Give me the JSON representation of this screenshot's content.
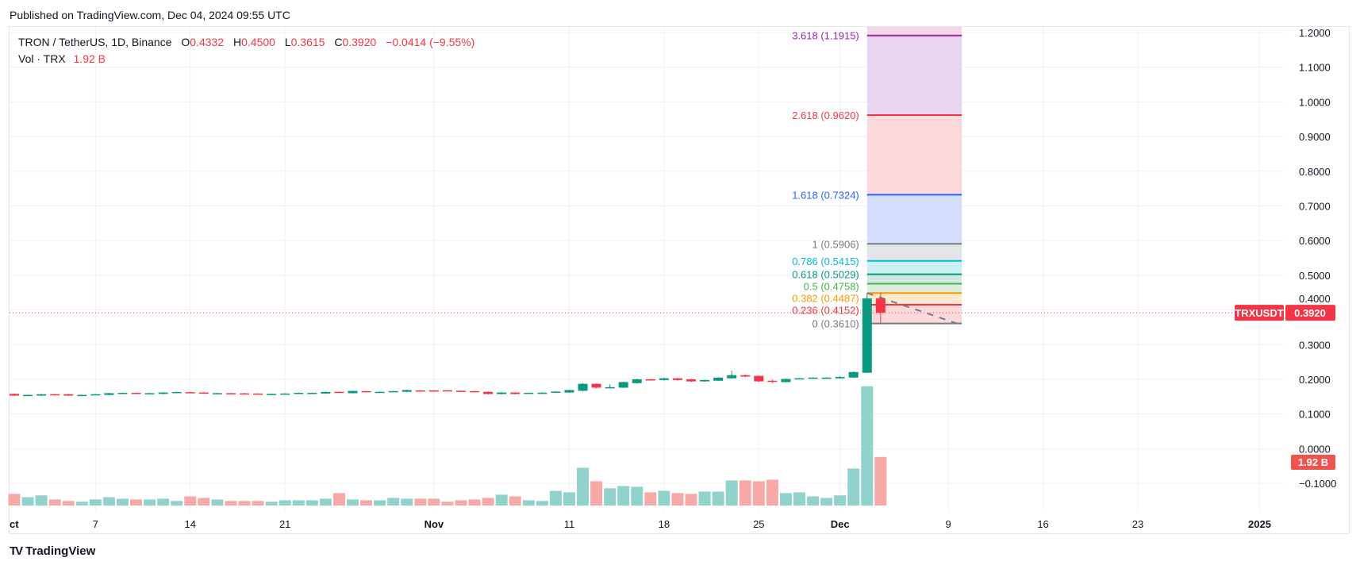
{
  "published": "Published on TradingView.com, Dec 04, 2024 09:55 UTC",
  "legend": {
    "title": "TRON / TetherUS, 1D, Binance",
    "o_label": "O",
    "o": "0.4332",
    "h_label": "H",
    "h": "0.4500",
    "l_label": "L",
    "l": "0.3615",
    "c_label": "C",
    "c": "0.3920",
    "change": "−0.0414 (−9.55%)",
    "vol_label": "Vol · TRX",
    "vol": "1.92 B"
  },
  "footer": {
    "logo": "TV",
    "brand": "TradingView"
  },
  "colors": {
    "up": "#089981",
    "down": "#f23645",
    "vol_up": "#92d2cc",
    "vol_down": "#f7a9a7",
    "grid": "#f0f1f4"
  },
  "chart_data": {
    "type": "candlestick",
    "symbol_badge": "TRXUSDT",
    "last_price": "0.3920",
    "volume_badge": "1.92 B",
    "start_date": "2024-10-01",
    "interval": "1D",
    "y_ticks": [
      "1.2000",
      "1.1000",
      "1.0000",
      "0.9000",
      "0.8000",
      "0.7000",
      "0.6000",
      "0.5000",
      "0.4000",
      "0.3000",
      "0.2000",
      "0.1000",
      "0.0000",
      "−0.1000"
    ],
    "y_tick_values": [
      1.2,
      1.1,
      1.0,
      0.9,
      0.8,
      0.7,
      0.6,
      0.5,
      0.4,
      0.3,
      0.2,
      0.1,
      0.0,
      -0.1
    ],
    "x_ticks": [
      {
        "label": "ct",
        "date": "2024-10-01"
      },
      {
        "label": "7",
        "date": "2024-10-07"
      },
      {
        "label": "14",
        "date": "2024-10-14"
      },
      {
        "label": "21",
        "date": "2024-10-21"
      },
      {
        "label": "Nov",
        "date": "2024-11-01"
      },
      {
        "label": "11",
        "date": "2024-11-11"
      },
      {
        "label": "18",
        "date": "2024-11-18"
      },
      {
        "label": "25",
        "date": "2024-11-25"
      },
      {
        "label": "Dec",
        "date": "2024-12-01"
      },
      {
        "label": "9",
        "date": "2024-12-09"
      },
      {
        "label": "16",
        "date": "2024-12-16"
      },
      {
        "label": "23",
        "date": "2024-12-23"
      },
      {
        "label": "2025",
        "date": "2025-01-01"
      }
    ],
    "ylim": [
      -0.1,
      1.2
    ],
    "open": [
      0.158,
      0.1545,
      0.153,
      0.157,
      0.157,
      0.154,
      0.156,
      0.155,
      0.16,
      0.161,
      0.159,
      0.158,
      0.162,
      0.163,
      0.162,
      0.159,
      0.16,
      0.1595,
      0.159,
      0.157,
      0.158,
      0.16,
      0.16,
      0.159,
      0.164,
      0.16,
      0.166,
      0.163,
      0.164,
      0.164,
      0.168,
      0.168,
      0.1685,
      0.167,
      0.166,
      0.164,
      0.1575,
      0.162,
      0.161,
      0.161,
      0.163,
      0.162,
      0.167,
      0.187,
      0.177,
      0.176,
      0.189,
      0.2,
      0.198,
      0.203,
      0.2,
      0.194,
      0.196,
      0.203,
      0.212,
      0.21,
      0.196,
      0.192,
      0.202,
      0.204,
      0.204,
      0.203,
      0.205,
      0.219,
      0.4332
    ],
    "high": [
      0.159,
      0.156,
      0.158,
      0.158,
      0.158,
      0.156,
      0.158,
      0.161,
      0.162,
      0.162,
      0.161,
      0.163,
      0.164,
      0.164,
      0.163,
      0.161,
      0.161,
      0.161,
      0.16,
      0.159,
      0.16,
      0.162,
      0.162,
      0.165,
      0.165,
      0.167,
      0.167,
      0.165,
      0.167,
      0.17,
      0.169,
      0.169,
      0.169,
      0.168,
      0.167,
      0.165,
      0.163,
      0.163,
      0.162,
      0.163,
      0.166,
      0.17,
      0.189,
      0.188,
      0.185,
      0.193,
      0.202,
      0.201,
      0.205,
      0.204,
      0.201,
      0.199,
      0.206,
      0.225,
      0.214,
      0.211,
      0.199,
      0.203,
      0.204,
      0.206,
      0.206,
      0.209,
      0.223,
      0.4487,
      0.45
    ],
    "low": [
      0.152,
      0.153,
      0.152,
      0.155,
      0.152,
      0.153,
      0.155,
      0.154,
      0.159,
      0.159,
      0.158,
      0.157,
      0.161,
      0.161,
      0.159,
      0.158,
      0.158,
      0.158,
      0.158,
      0.156,
      0.157,
      0.159,
      0.159,
      0.158,
      0.162,
      0.159,
      0.165,
      0.162,
      0.163,
      0.163,
      0.166,
      0.166,
      0.167,
      0.165,
      0.164,
      0.156,
      0.156,
      0.156,
      0.16,
      0.16,
      0.162,
      0.161,
      0.165,
      0.174,
      0.176,
      0.175,
      0.187,
      0.198,
      0.196,
      0.196,
      0.192,
      0.193,
      0.195,
      0.202,
      0.206,
      0.192,
      0.189,
      0.191,
      0.201,
      0.202,
      0.203,
      0.202,
      0.204,
      0.218,
      0.3615
    ],
    "close": [
      0.153,
      0.155,
      0.157,
      0.156,
      0.153,
      0.155,
      0.157,
      0.16,
      0.161,
      0.16,
      0.16,
      0.162,
      0.1635,
      0.162,
      0.16,
      0.16,
      0.159,
      0.159,
      0.1585,
      0.158,
      0.159,
      0.161,
      0.161,
      0.1635,
      0.163,
      0.1665,
      0.1655,
      0.164,
      0.166,
      0.169,
      0.167,
      0.167,
      0.168,
      0.166,
      0.165,
      0.1575,
      0.162,
      0.1575,
      0.1612,
      0.1615,
      0.1645,
      0.169,
      0.187,
      0.176,
      0.1775,
      0.192,
      0.2,
      0.199,
      0.203,
      0.198,
      0.194,
      0.198,
      0.205,
      0.212,
      0.208,
      0.194,
      0.195,
      0.201,
      0.203,
      0.205,
      0.205,
      0.207,
      0.221,
      0.4332,
      0.392
    ],
    "volume_b": [
      0.46,
      0.33,
      0.4,
      0.24,
      0.18,
      0.15,
      0.24,
      0.33,
      0.27,
      0.24,
      0.24,
      0.27,
      0.18,
      0.36,
      0.3,
      0.24,
      0.18,
      0.18,
      0.18,
      0.15,
      0.21,
      0.21,
      0.21,
      0.27,
      0.49,
      0.24,
      0.21,
      0.21,
      0.3,
      0.27,
      0.27,
      0.27,
      0.15,
      0.21,
      0.24,
      0.3,
      0.43,
      0.36,
      0.21,
      0.18,
      0.58,
      0.52,
      1.49,
      0.96,
      0.68,
      0.77,
      0.74,
      0.52,
      0.58,
      0.49,
      0.46,
      0.55,
      0.55,
      0.99,
      0.99,
      0.96,
      1.02,
      0.49,
      0.52,
      0.36,
      0.3,
      0.4,
      1.46,
      4.71,
      1.92
    ],
    "fib": {
      "from_date": "2024-12-03",
      "to_date": "2024-12-10",
      "trend_start": 0.4487,
      "trend_end": 0.361,
      "levels": [
        {
          "label": "3.618 (1.1915)",
          "value": 1.1915,
          "color": "#9c27b0",
          "fill": "#ead5f0"
        },
        {
          "label": "2.618 (0.9620)",
          "value": 0.962,
          "color": "#f23645",
          "fill": "#fbd8da"
        },
        {
          "label": "1.618 (0.7324)",
          "value": 0.7324,
          "color": "#2962ff",
          "fill": "#d3defc"
        },
        {
          "label": "1 (0.5906)",
          "value": 0.5906,
          "color": "#787b86",
          "fill": "#e4e5e7"
        },
        {
          "label": "0.786 (0.5415)",
          "value": 0.5415,
          "color": "#00bcd4",
          "fill": "#ccf0f4"
        },
        {
          "label": "0.618 (0.5029)",
          "value": 0.5029,
          "color": "#089981",
          "fill": "#cfe8e2"
        },
        {
          "label": "0.5 (0.4758)",
          "value": 0.4758,
          "color": "#4caf50",
          "fill": "#dbefdc"
        },
        {
          "label": "0.382 (0.4487)",
          "value": 0.4487,
          "color": "#ff9800",
          "fill": "#ffead0"
        },
        {
          "label": "0.236 (0.4152)",
          "value": 0.4152,
          "color": "#f23645",
          "fill": "#fbd8da"
        },
        {
          "label": "0 (0.3610)",
          "value": 0.361,
          "color": "#787b86",
          "fill": null
        }
      ]
    }
  }
}
